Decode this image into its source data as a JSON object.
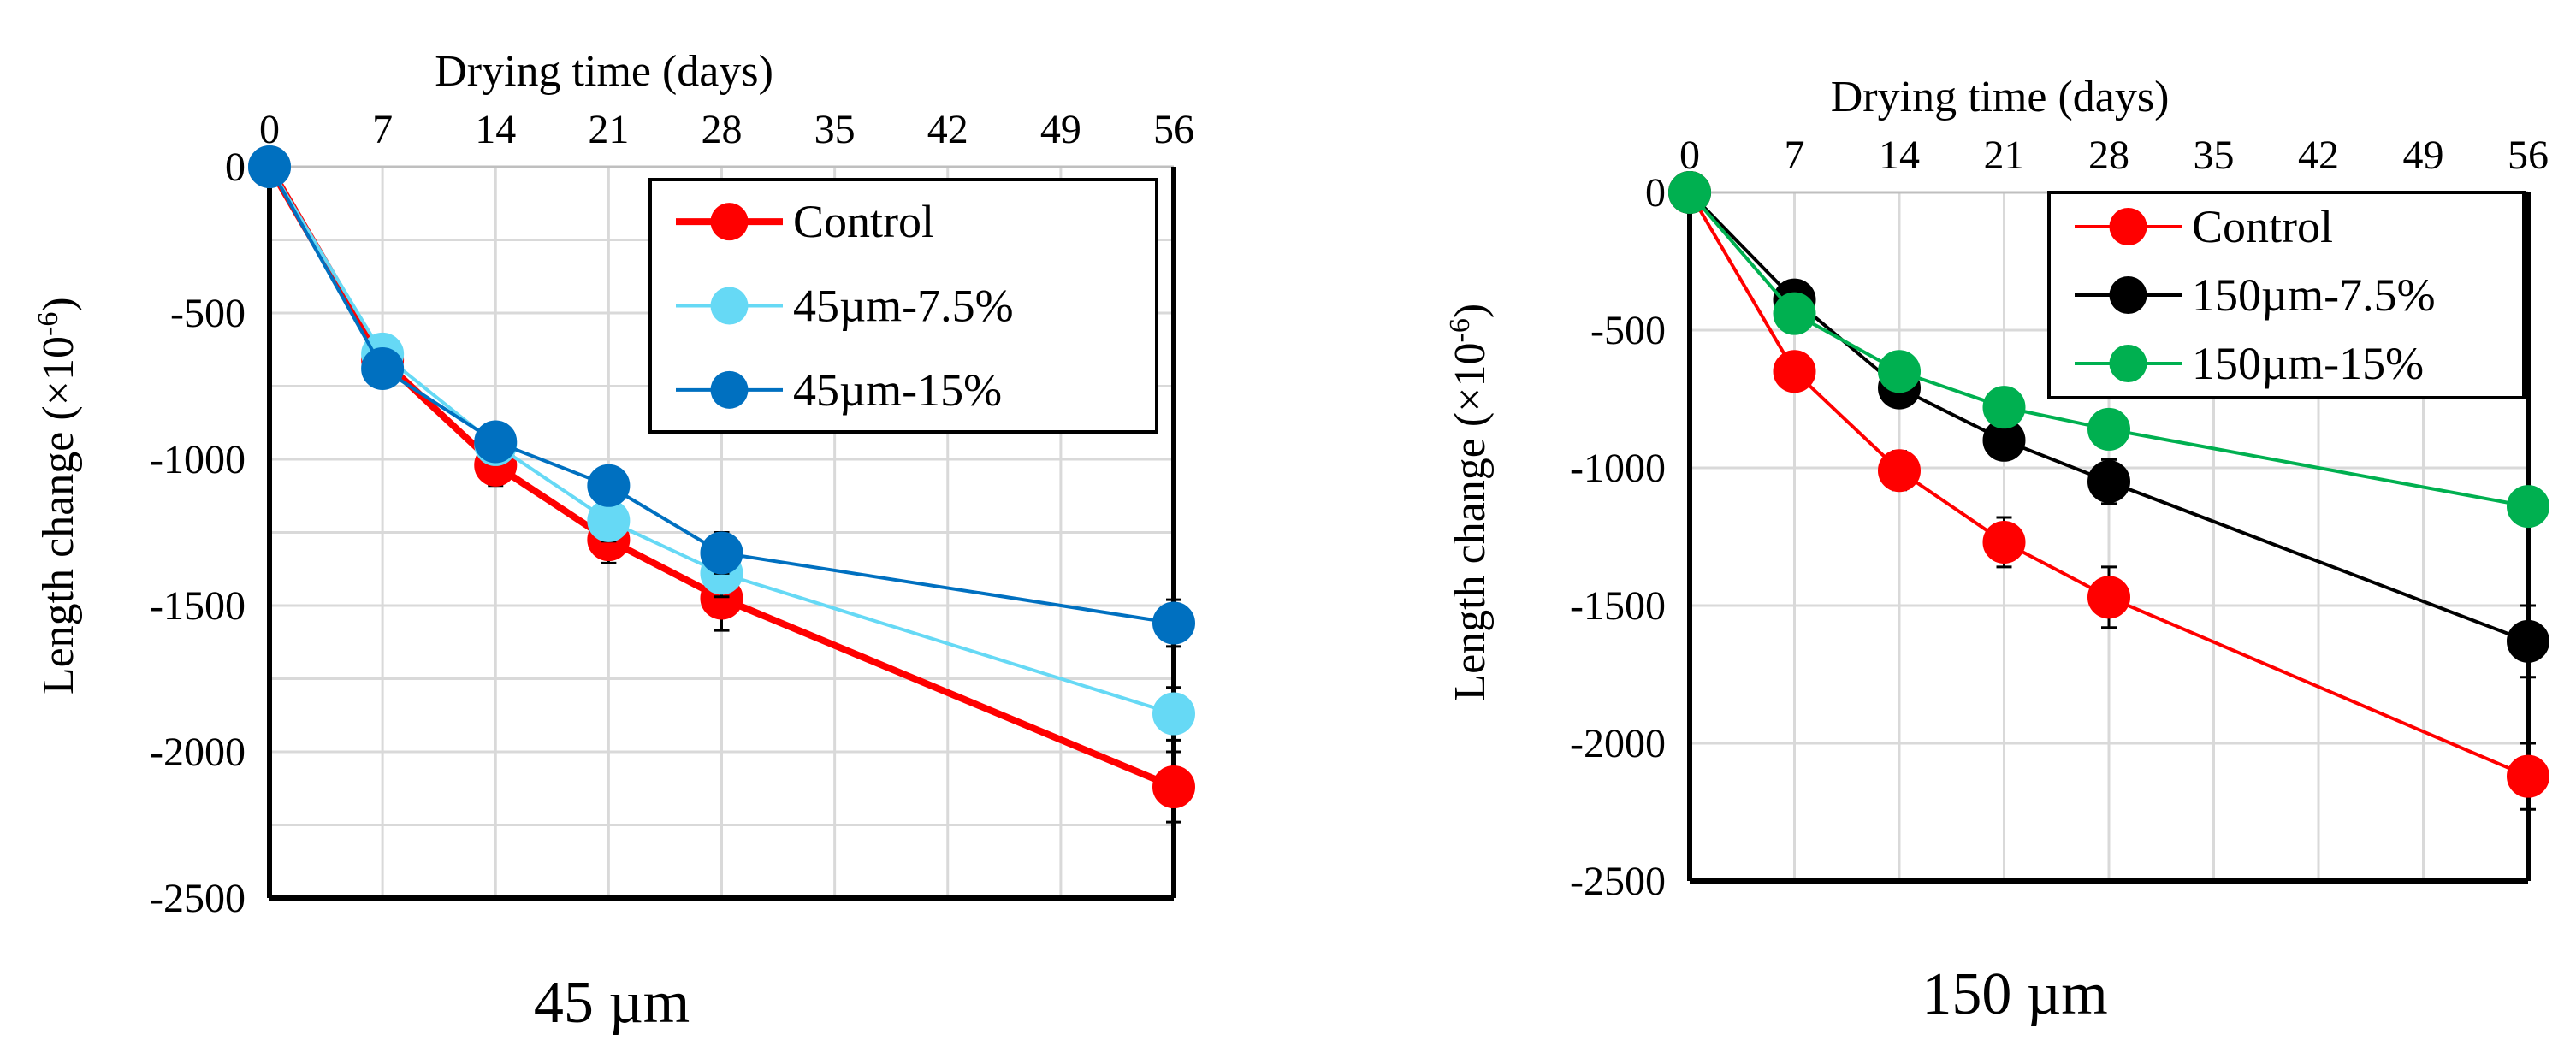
{
  "chart_data": [
    {
      "type": "line",
      "caption": "45 µm",
      "title": "",
      "xlabel": "Drying time (days)",
      "ylabel": "Length change (×10",
      "ylabel_exp": "-6",
      "ylabel_close": ")",
      "xlim": [
        0,
        56
      ],
      "ylim": [
        -2500,
        0
      ],
      "xticks": [
        0,
        7,
        14,
        21,
        28,
        35,
        42,
        49,
        56
      ],
      "yticks": [
        0,
        -500,
        -1000,
        -1500,
        -2000,
        -2500
      ],
      "grid": true,
      "legend_position": "top-right",
      "series": [
        {
          "name": "Control",
          "color": "#ff0000",
          "x": [
            0,
            7,
            14,
            21,
            28,
            56
          ],
          "y": [
            0,
            -660,
            -1020,
            -1275,
            -1475,
            -2120
          ],
          "err": [
            0,
            40,
            70,
            80,
            110,
            120
          ]
        },
        {
          "name": "45µm-7.5%",
          "color": "#66d9f5",
          "x": [
            0,
            7,
            14,
            21,
            28,
            56
          ],
          "y": [
            0,
            -640,
            -950,
            -1210,
            -1390,
            -1870
          ],
          "err": [
            0,
            40,
            50,
            70,
            80,
            90
          ]
        },
        {
          "name": "45µm-15%",
          "color": "#0070c0",
          "x": [
            0,
            7,
            14,
            21,
            28,
            56
          ],
          "y": [
            0,
            -690,
            -940,
            -1090,
            -1320,
            -1560
          ],
          "err": [
            0,
            30,
            50,
            40,
            70,
            80
          ]
        }
      ]
    },
    {
      "type": "line",
      "caption": "150 µm",
      "title": "",
      "xlabel": "Drying time (days)",
      "ylabel": "Length change (×10",
      "ylabel_exp": "-6",
      "ylabel_close": ")",
      "xlim": [
        0,
        56
      ],
      "ylim": [
        -2500,
        0
      ],
      "xticks": [
        0,
        7,
        14,
        21,
        28,
        35,
        42,
        49,
        56
      ],
      "yticks": [
        0,
        -500,
        -1000,
        -1500,
        -2000,
        -2500
      ],
      "grid": true,
      "legend_position": "top-right",
      "series": [
        {
          "name": "Control",
          "color": "#ff0000",
          "x": [
            0,
            7,
            14,
            21,
            28,
            56
          ],
          "y": [
            0,
            -650,
            -1010,
            -1270,
            -1470,
            -2120
          ],
          "err": [
            0,
            40,
            70,
            90,
            110,
            120
          ]
        },
        {
          "name": "150µm-7.5%",
          "color": "#000000",
          "x": [
            0,
            7,
            14,
            21,
            28,
            56
          ],
          "y": [
            0,
            -390,
            -710,
            -900,
            -1050,
            -1630
          ],
          "err": [
            0,
            30,
            40,
            50,
            80,
            130
          ]
        },
        {
          "name": "150µm-15%",
          "color": "#00b050",
          "x": [
            0,
            7,
            14,
            21,
            28,
            56
          ],
          "y": [
            0,
            -440,
            -650,
            -780,
            -860,
            -1140
          ],
          "err": [
            0,
            30,
            30,
            40,
            40,
            50
          ]
        }
      ]
    }
  ]
}
